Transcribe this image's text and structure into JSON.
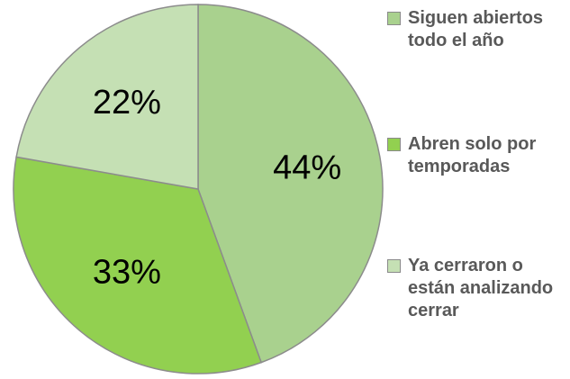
{
  "chart_data": {
    "type": "pie",
    "categories": [
      "Siguen abiertos todo el año",
      "Abren solo por temporadas",
      "Ya cerraron o están analizando cerrar"
    ],
    "values": [
      44,
      33,
      22
    ],
    "value_labels": [
      "44%",
      "33%",
      "22%"
    ],
    "colors": [
      "#a9d18e",
      "#92d050",
      "#c5e0b4"
    ],
    "legend": "right"
  }
}
